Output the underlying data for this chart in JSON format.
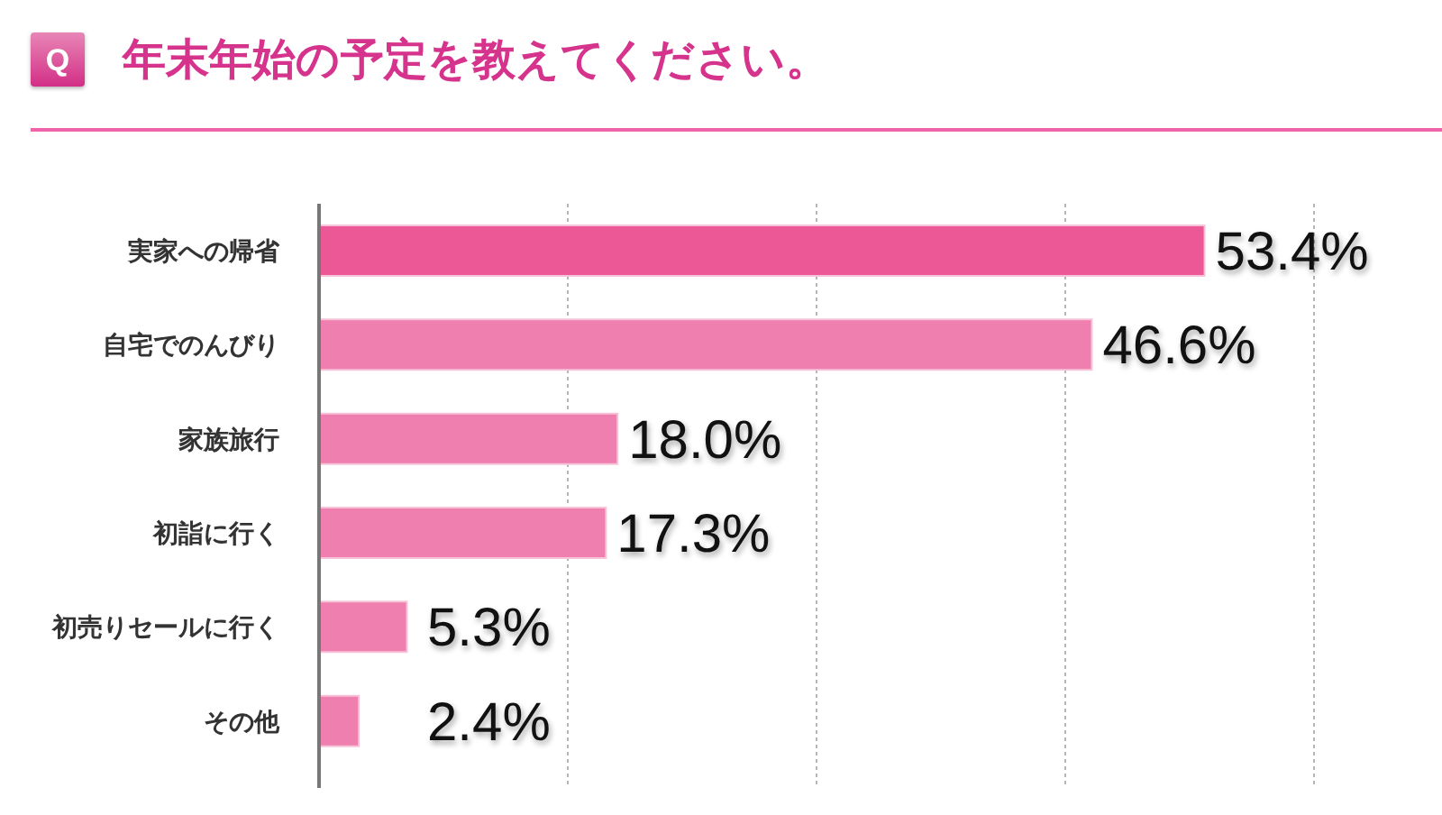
{
  "chart_data": {
    "type": "bar",
    "orientation": "horizontal",
    "title": "年末年始の予定を教えてください。",
    "annotations": [
      "Q"
    ],
    "categories": [
      "実家への帰省",
      "自宅でのんびり",
      "家族旅行",
      "初詣に行く",
      "初売りセールに行く",
      "その他"
    ],
    "values": [
      53.4,
      46.6,
      18.0,
      17.3,
      5.3,
      2.4
    ],
    "colors": [
      "#ec5896",
      "#ee7fae",
      "#ee7fae",
      "#ee7fae",
      "#ee7fae",
      "#ee7fae"
    ],
    "value_labels": [
      "53.4%",
      "46.6%",
      "18.0%",
      "17.3%",
      "5.3%",
      "2.4%"
    ],
    "xlim": [
      0,
      60
    ],
    "grid": "x",
    "tick_labels": "y"
  }
}
